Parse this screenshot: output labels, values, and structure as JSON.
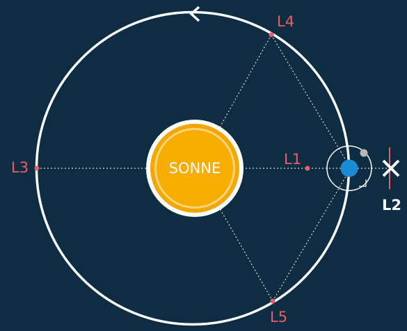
{
  "diagram": {
    "sun": "SONNE",
    "points": {
      "l1": "L1",
      "l2": "L2",
      "l3": "L3",
      "l4": "L4",
      "l5": "L5"
    }
  }
}
